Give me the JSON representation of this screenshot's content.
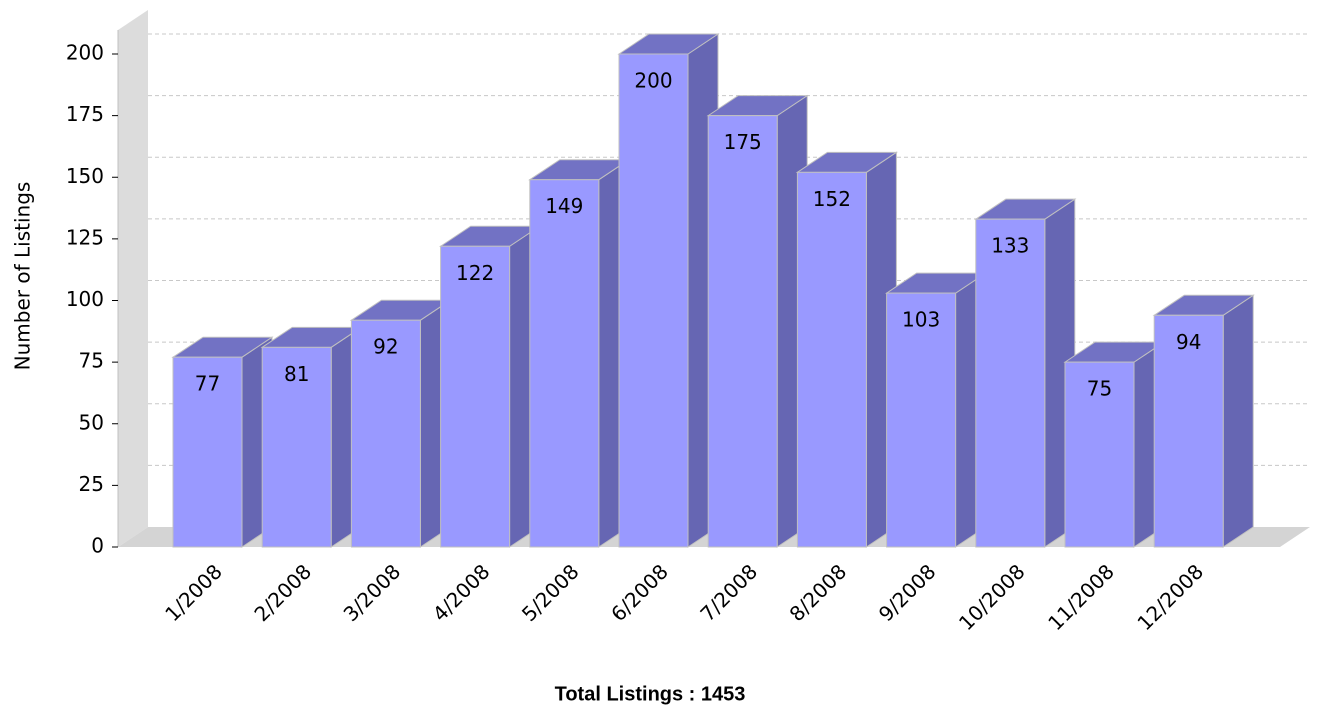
{
  "chart_data": {
    "type": "bar3d",
    "title": "Total Listings : 1453",
    "y_label": "Number of Listings",
    "categories": [
      "1/2008",
      "2/2008",
      "3/2008",
      "4/2008",
      "5/2008",
      "6/2008",
      "7/2008",
      "8/2008",
      "9/2008",
      "10/2008",
      "11/2008",
      "12/2008"
    ],
    "values": [
      77,
      81,
      92,
      122,
      149,
      200,
      175,
      152,
      103,
      133,
      75,
      94
    ],
    "color": "#9999ff",
    "side_color": "#6666b3",
    "top_color": "#7272c4",
    "ylim": [
      0,
      200
    ],
    "yticks": [
      0,
      25,
      50,
      75,
      100,
      125,
      150,
      175,
      200
    ],
    "grid": true
  }
}
